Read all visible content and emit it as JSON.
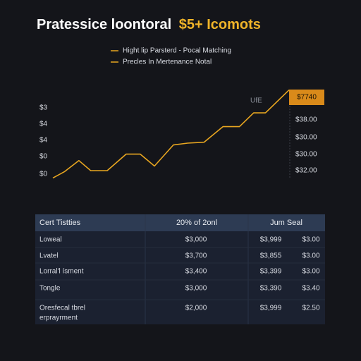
{
  "chart_data": {
    "type": "line",
    "title": "Pratessice loontoral",
    "title_highlight": "$5+ Icomots",
    "legend": [
      "Hight lip Parsterd - Pocal Matching",
      "Precles In Mertenance Notal"
    ],
    "x": [
      0,
      5,
      11,
      16,
      23,
      31,
      37,
      43,
      51,
      57,
      64,
      72,
      79,
      85,
      90,
      100
    ],
    "xlim": [
      0,
      100
    ],
    "series": [
      {
        "color": "#e8a620",
        "values": [
          2,
          9,
          21,
          10,
          10,
          28,
          28,
          15,
          38,
          40,
          41,
          58,
          58,
          73,
          73,
          98
        ]
      }
    ],
    "ylim": [
      0,
      100
    ],
    "left_labels": [
      "$3",
      "$4",
      "$4",
      "$0",
      "$0"
    ],
    "right_labels": [
      "$38.00",
      "$30.00",
      "$30.00",
      "$32.00"
    ],
    "top_label": "$7740",
    "line_label": "UfE"
  },
  "table": {
    "header": [
      "Cert Tistties",
      "20% of 2onl",
      "Jum Seal"
    ],
    "rows": [
      [
        "Loweal",
        "$3,000",
        "$3,999",
        "$3.00"
      ],
      [
        "Lvatel",
        "$3,700",
        "$3,855",
        "$3.00"
      ],
      [
        "Lorral'l ísment",
        "$3,400",
        "$3,399",
        "$3.00"
      ],
      [
        "Tongle",
        "$3,000",
        "$3,390",
        "$3.40"
      ],
      [
        [
          "Oresfecal tbrel",
          "erprayrment"
        ],
        "$2,000",
        "$3,999",
        "$2.50"
      ]
    ]
  }
}
